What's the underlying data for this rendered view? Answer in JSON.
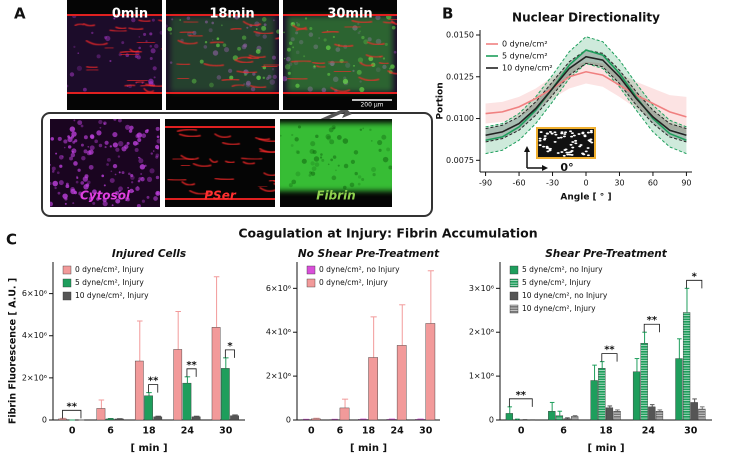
{
  "panel_labels": [
    "A",
    "B",
    "C"
  ],
  "panel_a": {
    "time_labels": [
      "0min",
      "18min",
      "30min"
    ],
    "scale_bar": "200 µm",
    "channel_labels": [
      "Cytosol",
      "PSer",
      "Fibrin"
    ]
  },
  "figure_c_title": "Coagulation at Injury: Fibrin Accumulation",
  "chart_data": [
    {
      "type": "line",
      "title": "Nuclear Directionality",
      "x_label": "Angle [ ° ]",
      "y_label": "Portion",
      "annotation": "0°",
      "legend": "upper left",
      "x": [
        -90,
        -75,
        -60,
        -45,
        -30,
        -15,
        0,
        15,
        30,
        45,
        60,
        75,
        90
      ],
      "xlim": [
        -95,
        95
      ],
      "xticks": [
        -90,
        -60,
        -30,
        0,
        30,
        60,
        90
      ],
      "ylim": [
        0.0068,
        0.0153
      ],
      "yticks": [
        0.0075,
        {
          "value": 0.01,
          "label": "0.0100"
        },
        0.0125,
        {
          "value": 0.015,
          "label": "0.0150"
        }
      ],
      "series": [
        {
          "name": "0 dyne/cm²",
          "color": "#f08080",
          "band_dashed": false,
          "values": [
            0.0103,
            0.0104,
            0.0107,
            0.0112,
            0.0118,
            0.0125,
            0.0128,
            0.0126,
            0.012,
            0.0114,
            0.0109,
            0.0104,
            0.0101
          ],
          "lower": [
            0.0097,
            0.0098,
            0.0101,
            0.0106,
            0.0112,
            0.0118,
            0.0121,
            0.0119,
            0.0113,
            0.0106,
            0.0099,
            0.0094,
            0.0091
          ],
          "upper": [
            0.0109,
            0.011,
            0.0113,
            0.0118,
            0.0125,
            0.0131,
            0.0134,
            0.0133,
            0.0127,
            0.0122,
            0.0118,
            0.0114,
            0.0113
          ]
        },
        {
          "name": "5 dyne/cm²",
          "color": "#1e9e5c",
          "band_dashed": true,
          "values": [
            0.0087,
            0.0089,
            0.0095,
            0.0105,
            0.0118,
            0.0132,
            0.0141,
            0.0138,
            0.0127,
            0.0113,
            0.01,
            0.0091,
            0.0087
          ],
          "lower": [
            0.0079,
            0.0081,
            0.0087,
            0.0097,
            0.011,
            0.0124,
            0.0133,
            0.013,
            0.0119,
            0.0105,
            0.0092,
            0.0083,
            0.0079
          ],
          "upper": [
            0.0095,
            0.0097,
            0.0103,
            0.0113,
            0.0126,
            0.014,
            0.0149,
            0.0146,
            0.0135,
            0.0121,
            0.0108,
            0.0099,
            0.0095
          ]
        },
        {
          "name": "10 dyne/cm²",
          "color": "#222222",
          "band_dashed": true,
          "values": [
            0.009,
            0.0092,
            0.0097,
            0.0106,
            0.0118,
            0.013,
            0.0137,
            0.0135,
            0.0125,
            0.0112,
            0.0101,
            0.0093,
            0.009
          ],
          "lower": [
            0.0086,
            0.0088,
            0.0093,
            0.0102,
            0.0114,
            0.0126,
            0.0133,
            0.0131,
            0.0121,
            0.0108,
            0.0097,
            0.0089,
            0.0086
          ],
          "upper": [
            0.0094,
            0.0096,
            0.0101,
            0.011,
            0.0122,
            0.0134,
            0.0141,
            0.0139,
            0.0129,
            0.0116,
            0.0105,
            0.0097,
            0.0094
          ]
        }
      ]
    },
    {
      "type": "bar",
      "title": "Injured Cells",
      "x_label": "[ min ]",
      "y_label": "Fibrin Fluorescence [ A.U. ]",
      "categories": [
        "0",
        "6",
        "18",
        "24",
        "30"
      ],
      "ylim": [
        0,
        7500000
      ],
      "yticks": [
        0,
        {
          "value": 2000000,
          "label": "2×10⁶"
        },
        {
          "value": 4000000,
          "label": "4×10⁶"
        },
        {
          "value": 6000000,
          "label": "6×10⁶"
        }
      ],
      "series": [
        {
          "name": "0 dyne/cm², Injury",
          "color": "#f29a9a",
          "values": [
            50000,
            550000,
            2800000,
            3350000,
            4400000
          ],
          "errors": [
            30000,
            400000,
            1900000,
            1800000,
            2400000
          ]
        },
        {
          "name": "5 dyne/cm², Injury",
          "color": "#1e9e5c",
          "values": [
            0,
            50000,
            1150000,
            1750000,
            2450000
          ],
          "errors": [
            0,
            20000,
            150000,
            300000,
            500000
          ]
        },
        {
          "name": "10 dyne/cm², Injury",
          "color": "#555555",
          "values": [
            0,
            50000,
            150000,
            150000,
            200000
          ],
          "errors": [
            0,
            10000,
            30000,
            30000,
            40000
          ]
        }
      ],
      "annotations": [
        {
          "text": "**",
          "category": "0",
          "series": [
            0,
            2
          ]
        },
        {
          "text": "**",
          "category": "18",
          "series": [
            1,
            2
          ]
        },
        {
          "text": "**",
          "category": "24",
          "series": [
            1,
            2
          ]
        },
        {
          "text": "*",
          "category": "30",
          "series": [
            1,
            2
          ]
        }
      ]
    },
    {
      "type": "bar",
      "title": "No Shear Pre-Treatment",
      "x_label": "[ min ]",
      "categories": [
        "0",
        "6",
        "18",
        "24",
        "30"
      ],
      "ylim": [
        0,
        7200000
      ],
      "yticks": [
        0,
        {
          "value": 2000000,
          "label": "2×10⁶"
        },
        {
          "value": 4000000,
          "label": "4×10⁶"
        },
        {
          "value": 6000000,
          "label": "6×10⁶"
        }
      ],
      "series": [
        {
          "name": "0 dyne/cm², no Injury",
          "color": "#d94fd9",
          "values": [
            20000,
            20000,
            30000,
            30000,
            30000
          ],
          "errors": [
            10000,
            10000,
            10000,
            10000,
            10000
          ]
        },
        {
          "name": "0 dyne/cm², Injury",
          "color": "#f29a9a",
          "values": [
            50000,
            550000,
            2850000,
            3400000,
            4400000
          ],
          "errors": [
            30000,
            400000,
            1850000,
            1850000,
            2400000
          ]
        }
      ]
    },
    {
      "type": "bar",
      "title": "Shear Pre-Treatment",
      "x_label": "[ min ]",
      "categories": [
        "0",
        "6",
        "18",
        "24",
        "30"
      ],
      "ylim": [
        0,
        3600000
      ],
      "yticks": [
        0,
        {
          "value": 1000000,
          "label": "1×10⁶"
        },
        {
          "value": 2000000,
          "label": "2×10⁶"
        },
        {
          "value": 3000000,
          "label": "3×10⁶"
        }
      ],
      "series": [
        {
          "name": "5 dyne/cm², no Injury",
          "color": "#1e9e5c",
          "fill_style": "solid",
          "values": [
            150000,
            200000,
            900000,
            1100000,
            1400000
          ],
          "errors": [
            150000,
            200000,
            350000,
            300000,
            450000
          ]
        },
        {
          "name": "5 dyne/cm², Injury",
          "color": "#1e9e5c",
          "fill_style": "striped",
          "values": [
            0,
            100000,
            1180000,
            1750000,
            2450000
          ],
          "errors": [
            20000,
            100000,
            150000,
            250000,
            550000
          ]
        },
        {
          "name": "10 dyne/cm², no Injury",
          "color": "#555555",
          "fill_style": "solid",
          "values": [
            0,
            30000,
            280000,
            300000,
            400000
          ],
          "errors": [
            10000,
            20000,
            40000,
            50000,
            80000
          ]
        },
        {
          "name": "10 dyne/cm², Injury",
          "color": "#777777",
          "fill_style": "striped",
          "values": [
            0,
            80000,
            200000,
            200000,
            250000
          ],
          "errors": [
            10000,
            20000,
            30000,
            30000,
            50000
          ]
        }
      ],
      "annotations": [
        {
          "text": "**",
          "category": "0",
          "series": [
            0,
            3
          ]
        },
        {
          "text": "**",
          "category": "18",
          "series": [
            1,
            3
          ]
        },
        {
          "text": "**",
          "category": "24",
          "series": [
            1,
            3
          ]
        },
        {
          "text": "*",
          "category": "30",
          "series": [
            1,
            3
          ]
        }
      ]
    }
  ]
}
